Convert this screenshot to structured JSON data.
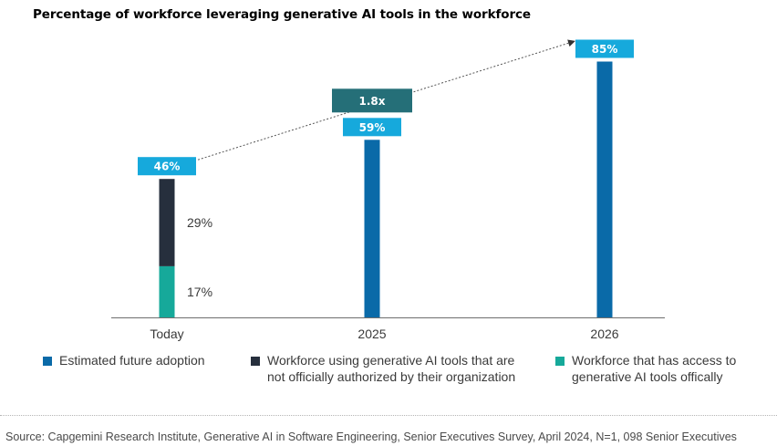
{
  "chart_data": {
    "type": "bar",
    "title": "Percentage of workforce leveraging generative AI tools in the workforce",
    "categories": [
      "Today",
      "2025",
      "2026"
    ],
    "series": [
      {
        "name": "Estimated future adoption",
        "color": "#0a6aa8",
        "values": [
          null,
          59,
          85
        ]
      },
      {
        "name": "Workforce using generative AI tools that are not officially authorized by their organization",
        "color": "#262f3d",
        "values": [
          29,
          null,
          null
        ]
      },
      {
        "name": "Workforce that has access to generative AI tools offically",
        "color": "#16a99a",
        "values": [
          17,
          null,
          null
        ]
      }
    ],
    "totals": [
      46,
      59,
      85
    ],
    "total_labels": [
      "46%",
      "59%",
      "85%"
    ],
    "segment_labels": {
      "Today": {
        "top": "29%",
        "bottom": "17%"
      }
    },
    "growth_annotation": "1.8x",
    "ylim": [
      0,
      100
    ],
    "grid": false
  },
  "colors": {
    "badge": "#16a9dc",
    "growth_badge": "#256f78",
    "axis": "#6e6e6e",
    "arrow": "#555555"
  },
  "legend": {
    "items": [
      {
        "lines": [
          "Estimated future adoption"
        ],
        "color": "#0a6aa8"
      },
      {
        "lines": [
          "Workforce using generative AI tools that are",
          "not officially authorized by their organization"
        ],
        "color": "#262f3d"
      },
      {
        "lines": [
          "Workforce that has access to",
          "generative AI tools offically"
        ],
        "color": "#16a99a"
      }
    ]
  },
  "source": "Source: Capgemini Research Institute, Generative AI in Software Engineering, Senior Executives Survey, April 2024, N=1, 098 Senior Executives"
}
